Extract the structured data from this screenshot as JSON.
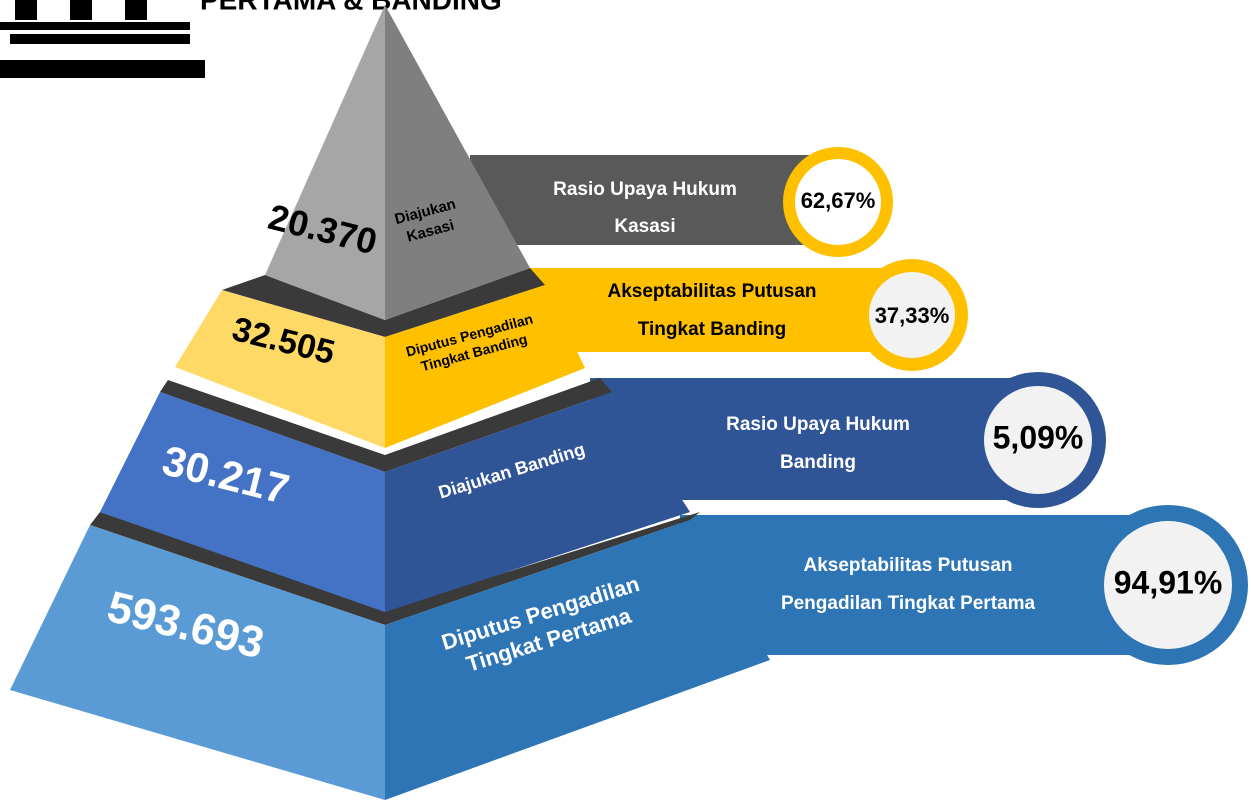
{
  "header": {
    "title": "PERTAMA & BANDING"
  },
  "levels": [
    {
      "value": "20.370",
      "label_lines": [
        "Diajukan",
        "Kasasi"
      ]
    },
    {
      "value": "32.505",
      "label_lines": [
        "Diputus Pengadilan",
        "Tingkat  Banding"
      ]
    },
    {
      "value": "30.217",
      "label_lines": [
        "Diajukan Banding"
      ]
    },
    {
      "value": "593.693",
      "label_lines": [
        "Diputus Pengadilan",
        "Tingkat Pertama"
      ]
    }
  ],
  "ratios": [
    {
      "label_lines": [
        "Rasio Upaya Hukum",
        "Kasasi"
      ],
      "value": "62,67%"
    },
    {
      "label_lines": [
        "Akseptabilitas  Putusan",
        "Tingkat Banding"
      ],
      "value": "37,33%"
    },
    {
      "label_lines": [
        "Rasio Upaya Hukum",
        "Banding"
      ],
      "value": "5,09%"
    },
    {
      "label_lines": [
        "Akseptabilitas  Putusan",
        "Pengadilan Tingkat Pertama"
      ],
      "value": "94,91%"
    }
  ]
}
